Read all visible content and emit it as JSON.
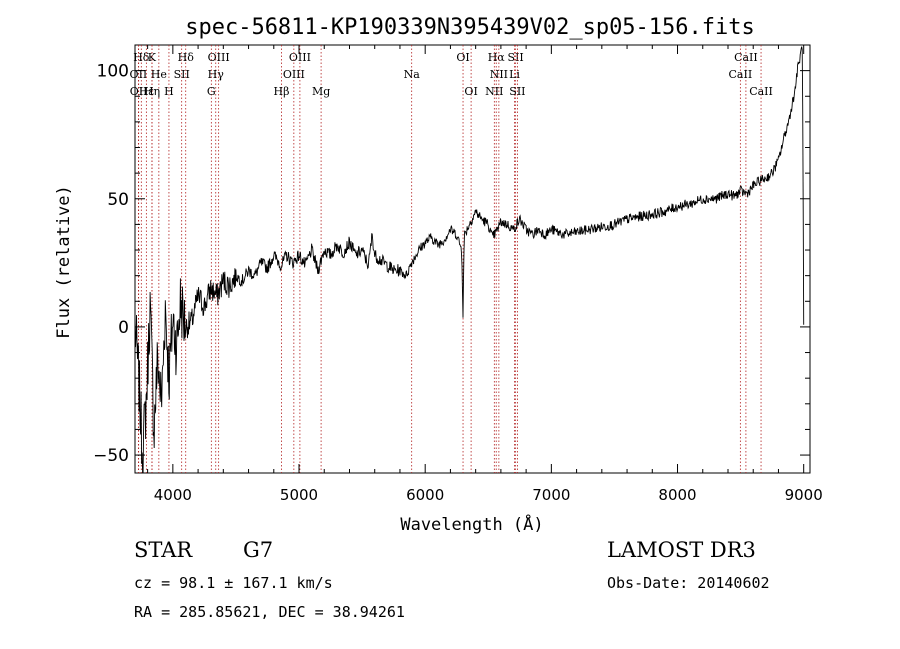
{
  "chart_data": {
    "type": "line",
    "title": "spec-56811-KP190339N395439V02_sp05-156.fits",
    "xlabel": "Wavelength (Å)",
    "ylabel": "Flux (relative)",
    "xlim": [
      3700,
      9050
    ],
    "ylim": [
      -57,
      110
    ],
    "x_ticks": [
      4000,
      5000,
      6000,
      7000,
      8000,
      9000
    ],
    "x_tick_labels": [
      "4000",
      "5000",
      "6000",
      "7000",
      "8000",
      "9000"
    ],
    "y_ticks": [
      -50,
      0,
      50,
      100
    ],
    "y_tick_labels": [
      "−50",
      "0",
      "50",
      "100"
    ],
    "grid": false,
    "series": [
      {
        "name": "flux",
        "x": [
          3700,
          3730,
          3760,
          3790,
          3820,
          3850,
          3880,
          3910,
          3940,
          3970,
          4000,
          4030,
          4060,
          4100,
          4150,
          4200,
          4250,
          4300,
          4350,
          4400,
          4450,
          4500,
          4550,
          4600,
          4650,
          4700,
          4750,
          4800,
          4860,
          4900,
          4950,
          5000,
          5050,
          5100,
          5150,
          5200,
          5250,
          5300,
          5350,
          5400,
          5450,
          5500,
          5550,
          5580,
          5600,
          5650,
          5700,
          5750,
          5800,
          5850,
          5890,
          5950,
          6000,
          6050,
          6100,
          6150,
          6200,
          6250,
          6290,
          6300,
          6310,
          6350,
          6400,
          6450,
          6500,
          6530,
          6563,
          6600,
          6650,
          6700,
          6750,
          6800,
          6850,
          6900,
          6950,
          7000,
          7100,
          7200,
          7300,
          7400,
          7500,
          7600,
          7700,
          7800,
          7900,
          8000,
          8100,
          8200,
          8300,
          8400,
          8450,
          8500,
          8550,
          8600,
          8650,
          8700,
          8750,
          8800,
          8850,
          8880,
          8900,
          8930,
          8950,
          8970,
          8990,
          9000
        ],
        "y": [
          0,
          -20,
          -50,
          -28,
          8,
          -40,
          -12,
          -30,
          8,
          -20,
          3,
          -8,
          10,
          0,
          2,
          12,
          8,
          15,
          12,
          18,
          16,
          20,
          18,
          22,
          20,
          25,
          23,
          28,
          24,
          28,
          25,
          28,
          24,
          30,
          22,
          30,
          28,
          32,
          29,
          33,
          28,
          30,
          24,
          36,
          28,
          26,
          24,
          22,
          22,
          20,
          25,
          30,
          33,
          35,
          32,
          34,
          38,
          36,
          30,
          5,
          36,
          40,
          45,
          42,
          40,
          35,
          37,
          41,
          40,
          38,
          42,
          38,
          36,
          38,
          36,
          38,
          36,
          37,
          38,
          39,
          40,
          42,
          43,
          44,
          45,
          47,
          48,
          50,
          50,
          52,
          51,
          53,
          52,
          55,
          57,
          58,
          60,
          65,
          75,
          80,
          85,
          92,
          100,
          105,
          110,
          0
        ]
      }
    ],
    "line_markers": [
      {
        "label": "Hδ",
        "x": 3750,
        "row": 0
      },
      {
        "label": "K",
        "x": 3834,
        "row": 0
      },
      {
        "label": "Hδ",
        "x": 4102,
        "row": 0
      },
      {
        "label": "OIII",
        "x": 4363,
        "row": 0
      },
      {
        "label": "OIII",
        "x": 5007,
        "row": 0
      },
      {
        "label": "OI",
        "x": 6300,
        "row": 0
      },
      {
        "label": "Hα",
        "x": 6563,
        "row": 0
      },
      {
        "label": "SII",
        "x": 6717,
        "row": 0
      },
      {
        "label": "CaII",
        "x": 8542,
        "row": 0
      },
      {
        "label": "OII",
        "x": 3727,
        "row": 1
      },
      {
        "label": "He",
        "x": 3889,
        "row": 1
      },
      {
        "label": "SII",
        "x": 4070,
        "row": 1
      },
      {
        "label": "Hγ",
        "x": 4340,
        "row": 1
      },
      {
        "label": "OIII",
        "x": 4959,
        "row": 1
      },
      {
        "label": "Na",
        "x": 5893,
        "row": 1
      },
      {
        "label": "NII",
        "x": 6584,
        "row": 1
      },
      {
        "label": "Li",
        "x": 6708,
        "row": 1
      },
      {
        "label": "CaII",
        "x": 8498,
        "row": 1
      },
      {
        "label": "OII",
        "x": 3729,
        "row": 2
      },
      {
        "label": "Hε",
        "x": 3790,
        "row": 2
      },
      {
        "label": "Hη",
        "x": 3835,
        "row": 2
      },
      {
        "label": "H",
        "x": 3969,
        "row": 2
      },
      {
        "label": "G",
        "x": 4305,
        "row": 2
      },
      {
        "label": "Hβ",
        "x": 4861,
        "row": 2
      },
      {
        "label": "Mg",
        "x": 5175,
        "row": 2
      },
      {
        "label": "OI",
        "x": 6364,
        "row": 2
      },
      {
        "label": "NII",
        "x": 6548,
        "row": 2
      },
      {
        "label": "SII",
        "x": 6731,
        "row": 2
      },
      {
        "label": "CaII",
        "x": 8662,
        "row": 2
      }
    ]
  },
  "info": {
    "object_class": "STAR",
    "subclass": "G7",
    "survey": "LAMOST DR3",
    "redshift_line": "cz = 98.1 ± 167.1 km/s",
    "obs_date": "Obs-Date: 20140602",
    "coords": "RA = 285.85621, DEC =  38.94261"
  }
}
